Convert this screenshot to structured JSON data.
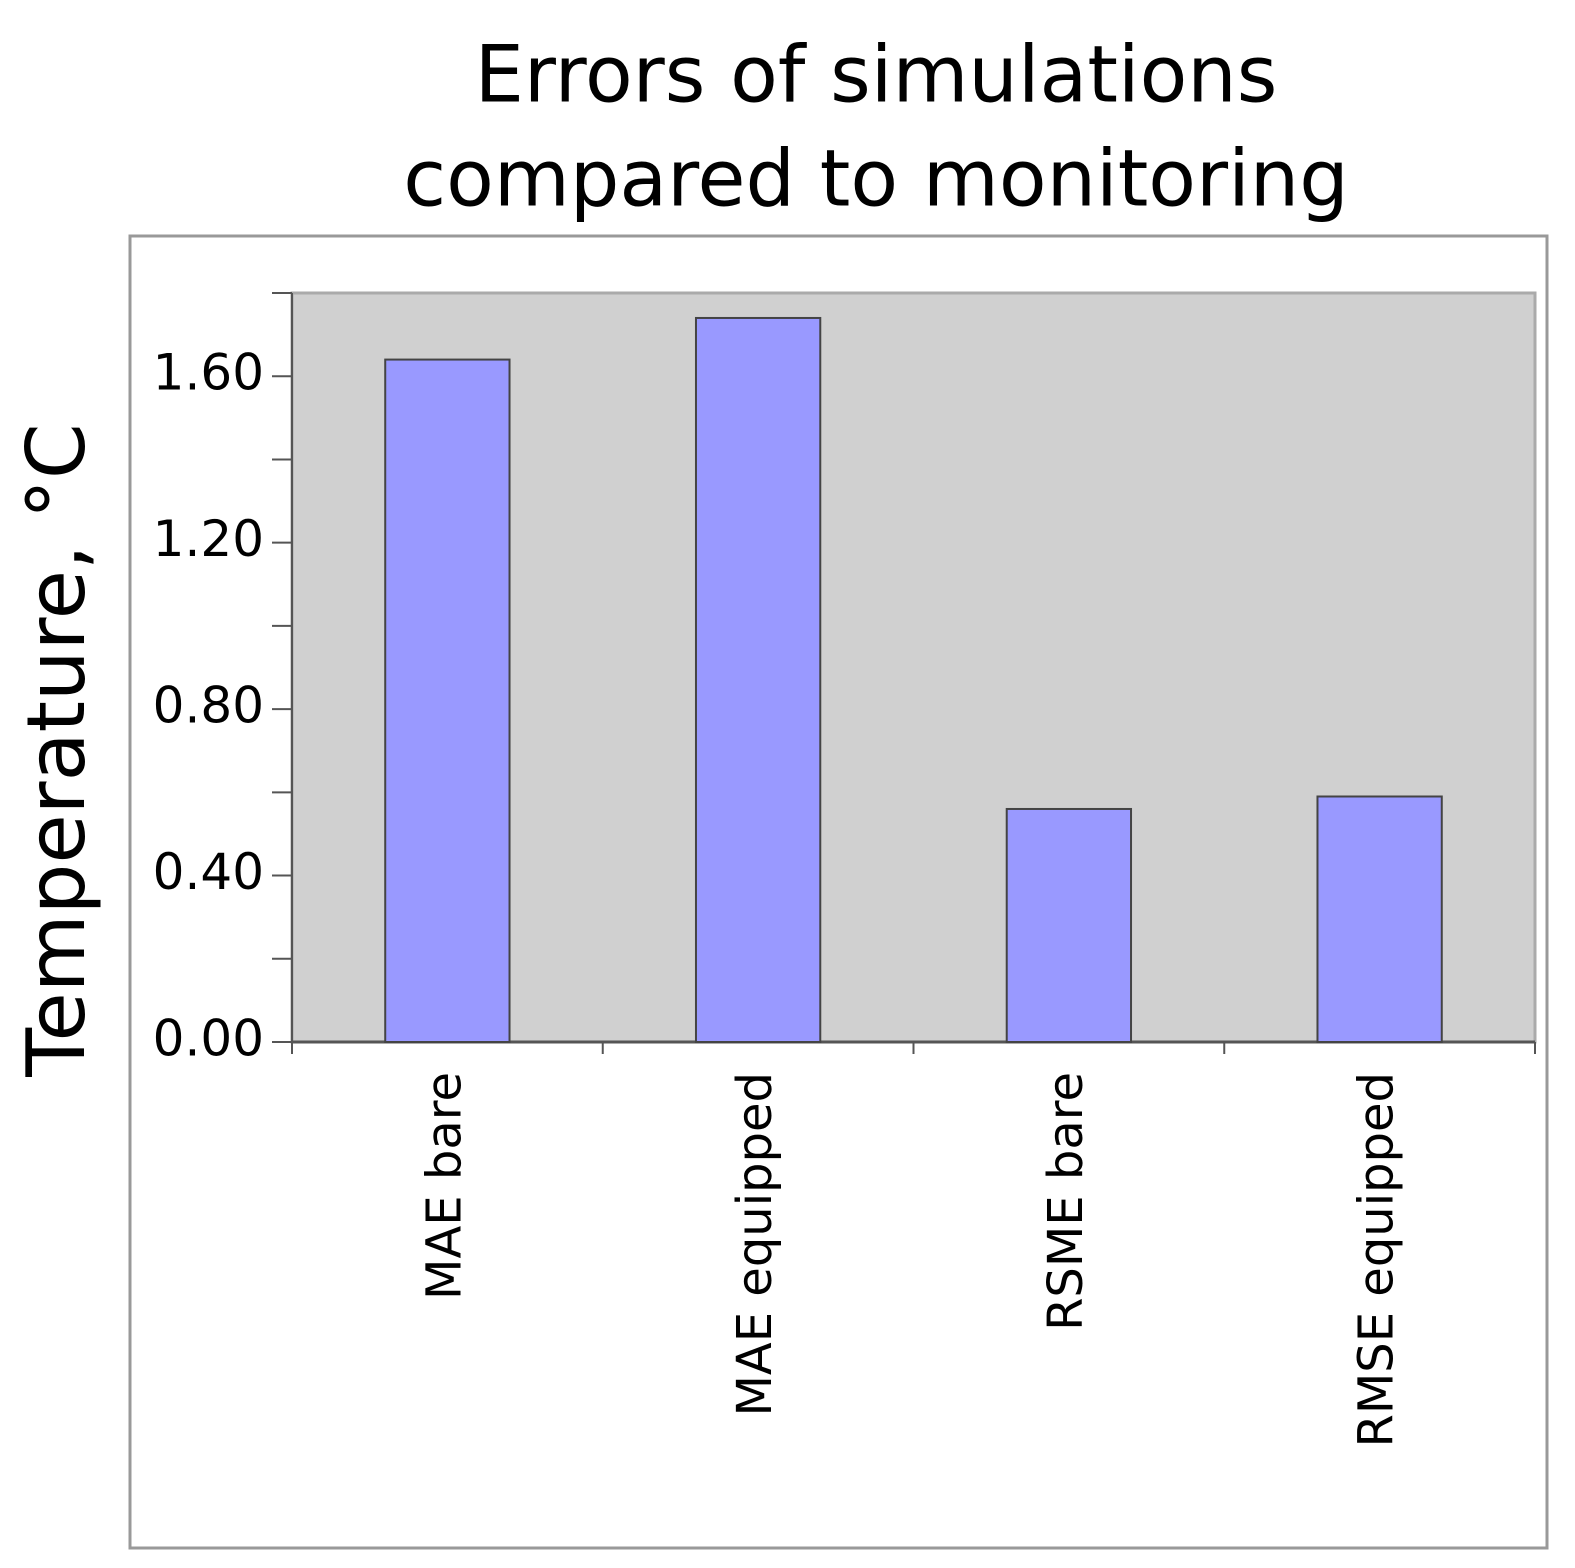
{
  "chart_data": {
    "type": "bar",
    "title": [
      "Errors of simulations",
      "compared to monitoring"
    ],
    "y_label": "Temperature, °C",
    "categories": [
      "MAE bare",
      "MAE equipped",
      "RSME bare",
      "RMSE equipped"
    ],
    "values": [
      1.64,
      1.74,
      0.56,
      0.59
    ],
    "color": "#9999ff",
    "ylim": [
      0,
      1.8
    ],
    "yticks": [
      {
        "value": 0,
        "label": "0.00"
      },
      {
        "value": 0.4,
        "label": "0.40"
      },
      {
        "value": 0.8,
        "label": "0.80"
      },
      {
        "value": 1.2,
        "label": "1.20"
      },
      {
        "value": 1.6,
        "label": "1.60"
      }
    ],
    "minor_yticks": [
      0.2,
      0.6,
      1.0,
      1.4,
      1.8
    ],
    "grid": false
  }
}
